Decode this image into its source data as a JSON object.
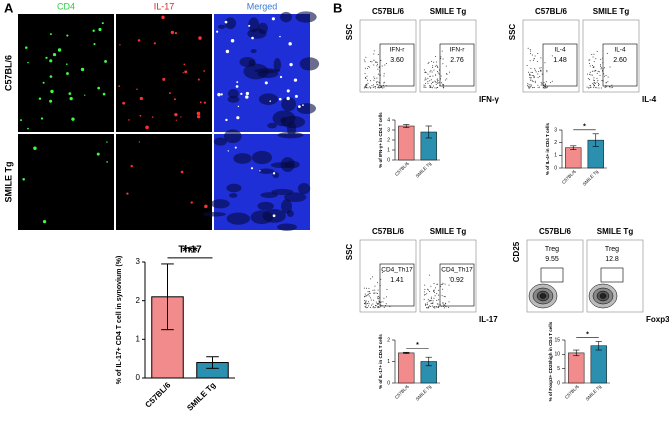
{
  "panel_labels": {
    "a": "A",
    "b": "B"
  },
  "microscopy": {
    "columns": [
      "CD4",
      "IL-17",
      "Merged"
    ],
    "rows": [
      "C57BL/6",
      "SMILE Tg"
    ]
  },
  "flow_panels": [
    {
      "groups": [
        "C57BL/6",
        "SMILE Tg"
      ],
      "ylabel": "SSC",
      "xlabel": "IFN-γ",
      "gates": [
        {
          "name": "IFN-r",
          "value": "3.60"
        },
        {
          "name": "IFN-r",
          "value": "2.76"
        }
      ]
    },
    {
      "groups": [
        "C57BL/6",
        "SMILE Tg"
      ],
      "ylabel": "SSC",
      "xlabel": "IL-4",
      "gates": [
        {
          "name": "IL-4",
          "value": "1.48"
        },
        {
          "name": "IL-4",
          "value": "2.60"
        }
      ]
    },
    {
      "groups": [
        "C57BL/6",
        "SMILE Tg"
      ],
      "ylabel": "SSC",
      "xlabel": "IL-17",
      "gates": [
        {
          "name": "CD4_Th17",
          "value": "1.41"
        },
        {
          "name": "CD4_Th17",
          "value": "0.92"
        }
      ]
    },
    {
      "groups": [
        "C57BL/6",
        "SMILE Tg"
      ],
      "ylabel": "CD25",
      "xlabel": "Foxp3",
      "gates": [
        {
          "name": "Treg",
          "value": "9.55"
        },
        {
          "name": "Treg",
          "value": "12.8"
        }
      ]
    }
  ],
  "chart_data": [
    {
      "type": "bar",
      "title": "Th17",
      "ylabel": "% of IL-17+ CD4 T cell in synovium (%)",
      "categories": [
        "C57BL/6",
        "SMILE Tg"
      ],
      "values": [
        2.1,
        0.4
      ],
      "errors": [
        0.85,
        0.15
      ],
      "colors": [
        "#f28b8b",
        "#2b8fb0"
      ],
      "ylim": [
        0,
        3
      ],
      "yticks": [
        0,
        1,
        2,
        3
      ],
      "significance": "***"
    },
    {
      "type": "bar",
      "ylabel": "% of IFN-γ+ in CD4 T cells",
      "categories": [
        "C57BL/6",
        "SMILE Tg"
      ],
      "values": [
        3.4,
        2.8
      ],
      "errors": [
        0.15,
        0.6
      ],
      "colors": [
        "#f28b8b",
        "#2b8fb0"
      ],
      "ylim": [
        0,
        4
      ],
      "yticks": [
        0,
        1,
        2,
        3,
        4
      ]
    },
    {
      "type": "bar",
      "ylabel": "% of IL-4+ in CD4 T cells",
      "categories": [
        "C57BL/6",
        "SMILE Tg"
      ],
      "values": [
        1.6,
        2.2
      ],
      "errors": [
        0.15,
        0.5
      ],
      "colors": [
        "#f28b8b",
        "#2b8fb0"
      ],
      "ylim": [
        0,
        3
      ],
      "yticks": [
        0,
        1,
        2,
        3
      ],
      "significance": "*"
    },
    {
      "type": "bar",
      "ylabel": "% of IL-17+ in CD4 T cells",
      "categories": [
        "C57BL/6",
        "SMILE Tg"
      ],
      "values": [
        1.4,
        1.0
      ],
      "errors": [
        0.03,
        0.2
      ],
      "colors": [
        "#f28b8b",
        "#2b8fb0"
      ],
      "ylim": [
        0,
        2
      ],
      "yticks": [
        0,
        1,
        2
      ],
      "significance": "*"
    },
    {
      "type": "bar",
      "ylabel": "% of Foxp3+ CD25high in CD4 T cells",
      "categories": [
        "C57BL/6",
        "SMILE Tg"
      ],
      "values": [
        10.5,
        13
      ],
      "errors": [
        1,
        1.5
      ],
      "colors": [
        "#f28b8b",
        "#2b8fb0"
      ],
      "ylim": [
        0,
        15
      ],
      "yticks": [
        0,
        5,
        10,
        15
      ],
      "significance": "*"
    }
  ]
}
